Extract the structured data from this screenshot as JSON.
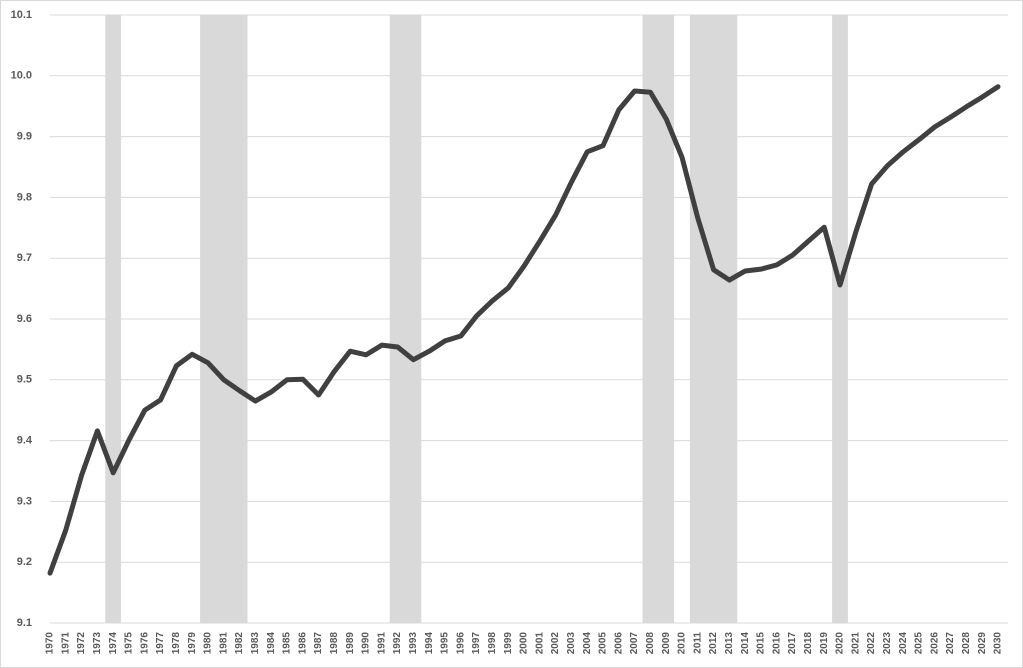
{
  "chart_data": {
    "type": "line",
    "x": [
      1970,
      1971,
      1972,
      1973,
      1974,
      1975,
      1976,
      1977,
      1978,
      1979,
      1980,
      1981,
      1982,
      1983,
      1984,
      1985,
      1986,
      1987,
      1988,
      1989,
      1990,
      1991,
      1992,
      1993,
      1994,
      1995,
      1996,
      1997,
      1998,
      1999,
      2000,
      2001,
      2002,
      2003,
      2004,
      2005,
      2006,
      2007,
      2008,
      2009,
      2010,
      2011,
      2012,
      2013,
      2014,
      2015,
      2016,
      2017,
      2018,
      2019,
      2020,
      2021,
      2022,
      2023,
      2024,
      2025,
      2026,
      2027,
      2028,
      2029,
      2030
    ],
    "values": [
      9.182,
      9.253,
      9.343,
      9.416,
      9.347,
      9.401,
      9.45,
      9.467,
      9.523,
      9.542,
      9.528,
      9.5,
      9.482,
      9.465,
      9.48,
      9.5,
      9.501,
      9.475,
      9.514,
      9.547,
      9.541,
      9.557,
      9.554,
      9.533,
      9.547,
      9.564,
      9.572,
      9.605,
      9.63,
      9.651,
      9.687,
      9.728,
      9.771,
      9.825,
      9.875,
      9.885,
      9.944,
      9.975,
      9.973,
      9.929,
      9.866,
      9.766,
      9.681,
      9.664,
      9.679,
      9.682,
      9.689,
      9.705,
      9.728,
      9.751,
      9.656,
      9.743,
      9.822,
      9.852,
      9.875,
      9.895,
      9.916,
      9.932,
      9.949,
      9.965,
      9.982
    ],
    "color": "#404040",
    "xlim": [
      1970,
      2030
    ],
    "ylim": [
      9.1,
      10.1
    ],
    "yticks": [
      9.1,
      9.2,
      9.3,
      9.4,
      9.5,
      9.6,
      9.7,
      9.8,
      9.9,
      {
        "value": 10,
        "label": "10.0"
      },
      10.1
    ],
    "grid": true,
    "shaded_ranges": [
      [
        1973.5,
        1974.5
      ],
      [
        1979.5,
        1982.5
      ],
      [
        1991.5,
        1993.5
      ],
      [
        2007.5,
        2009.5
      ],
      [
        2010.5,
        2013.5
      ],
      [
        2019.5,
        2020.5
      ]
    ],
    "shade_color": "#d9d9d9"
  }
}
